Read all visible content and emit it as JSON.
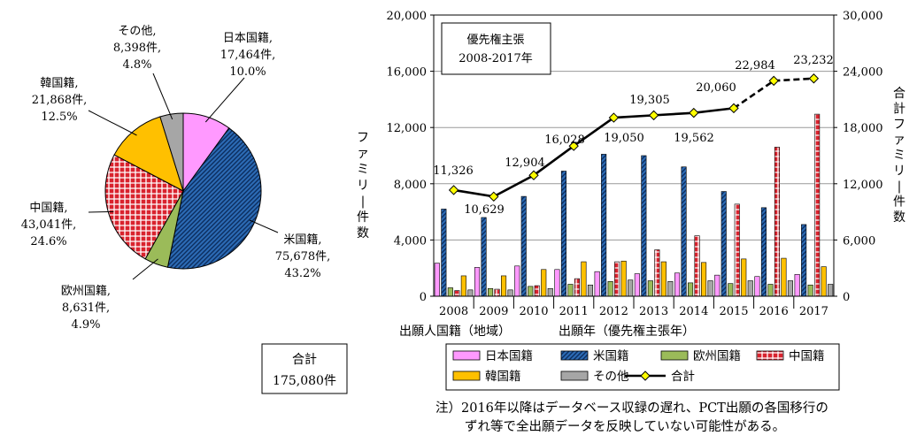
{
  "pie_chart": {
    "chart_data": {
      "type": "pie",
      "title": "",
      "slices": [
        {
          "name": "日本国籍",
          "count": "17,464件",
          "pct": "10.0%",
          "value": 10.0,
          "color": "#ff99ff",
          "pattern": "solid"
        },
        {
          "name": "米国籍",
          "count": "75,678件",
          "pct": "43.2%",
          "value": 43.2,
          "color": "#2c6bb5",
          "pattern": "diag"
        },
        {
          "name": "欧州国籍",
          "count": "8,631件",
          "pct": "4.9%",
          "value": 4.9,
          "color": "#9bbb59",
          "pattern": "solid"
        },
        {
          "name": "中国籍",
          "count": "43,041件",
          "pct": "24.6%",
          "value": 24.6,
          "color": "#d9232e",
          "pattern": "grid"
        },
        {
          "name": "韓国籍",
          "count": "21,868件",
          "pct": "12.5%",
          "value": 12.5,
          "color": "#ffc000",
          "pattern": "solid"
        },
        {
          "name": "その他",
          "count": "8,398件",
          "pct": "4.8%",
          "value": 4.8,
          "color": "#a6a6a6",
          "pattern": "solid"
        }
      ]
    },
    "total_label": "合計",
    "total_value": "175,080件",
    "caption": "出願人国籍（地域）"
  },
  "bar_chart": {
    "chart_data": {
      "type": "bar",
      "categories": [
        "2008",
        "2009",
        "2010",
        "2011",
        "2012",
        "2013",
        "2014",
        "2015",
        "2016",
        "2017"
      ],
      "series": [
        {
          "name": "日本国籍",
          "values": [
            2350,
            2050,
            2150,
            1900,
            1750,
            1600,
            1650,
            1500,
            1400,
            1550
          ],
          "color": "#ff99ff",
          "pattern": "solid"
        },
        {
          "name": "米国籍",
          "values": [
            6200,
            5600,
            7100,
            8900,
            10100,
            10000,
            9200,
            7450,
            6300,
            5100
          ],
          "color": "#2c6bb5",
          "pattern": "diag"
        },
        {
          "name": "欧州国籍",
          "values": [
            600,
            550,
            700,
            850,
            1050,
            1100,
            950,
            900,
            850,
            800
          ],
          "color": "#9bbb59",
          "pattern": "solid"
        },
        {
          "name": "中国籍",
          "values": [
            400,
            500,
            750,
            1250,
            2450,
            3300,
            4300,
            6550,
            10600,
            12950
          ],
          "color": "#d9232e",
          "pattern": "grid"
        },
        {
          "name": "韓国籍",
          "values": [
            1450,
            1450,
            1900,
            2450,
            2500,
            2450,
            2400,
            2650,
            2700,
            2100
          ],
          "color": "#ffc000",
          "pattern": "solid"
        },
        {
          "name": "その他",
          "values": [
            450,
            450,
            550,
            800,
            1150,
            1050,
            1100,
            1100,
            1100,
            850
          ],
          "color": "#a6a6a6",
          "pattern": "solid"
        }
      ],
      "total_series": {
        "name": "合計",
        "values": [
          11326,
          10629,
          12904,
          16028,
          19050,
          19305,
          19562,
          20060,
          22984,
          23232
        ],
        "labels": [
          "11,326",
          "10,629",
          "12,904",
          "16,028",
          "19,050",
          "19,305",
          "19,562",
          "20,060",
          "22,984",
          "23,232"
        ],
        "solid_until_index": 7,
        "color": "#000000",
        "marker_color": "#ffff00"
      },
      "ylim": [
        0,
        20000
      ],
      "y2lim": [
        0,
        30000
      ],
      "yticks": [
        "0",
        "4,000",
        "8,000",
        "12,000",
        "16,000",
        "20,000"
      ],
      "y2ticks": [
        "0",
        "6,000",
        "12,000",
        "18,000",
        "24,000",
        "30,000"
      ],
      "ylabel": "ファミリー件数",
      "y2label": "合計ファミリー件数",
      "xlabel": "出願年（優先権主張年）",
      "grid": true,
      "legend_position": "bottom"
    },
    "title_box_line1": "優先権主張",
    "title_box_line2": "2008-2017年"
  },
  "note_line1": "注）2016年以降はデータベース収録の遅れ、PCT出願の各国移行の",
  "note_line2": "ずれ等で全出願データを反映していない可能性がある。"
}
